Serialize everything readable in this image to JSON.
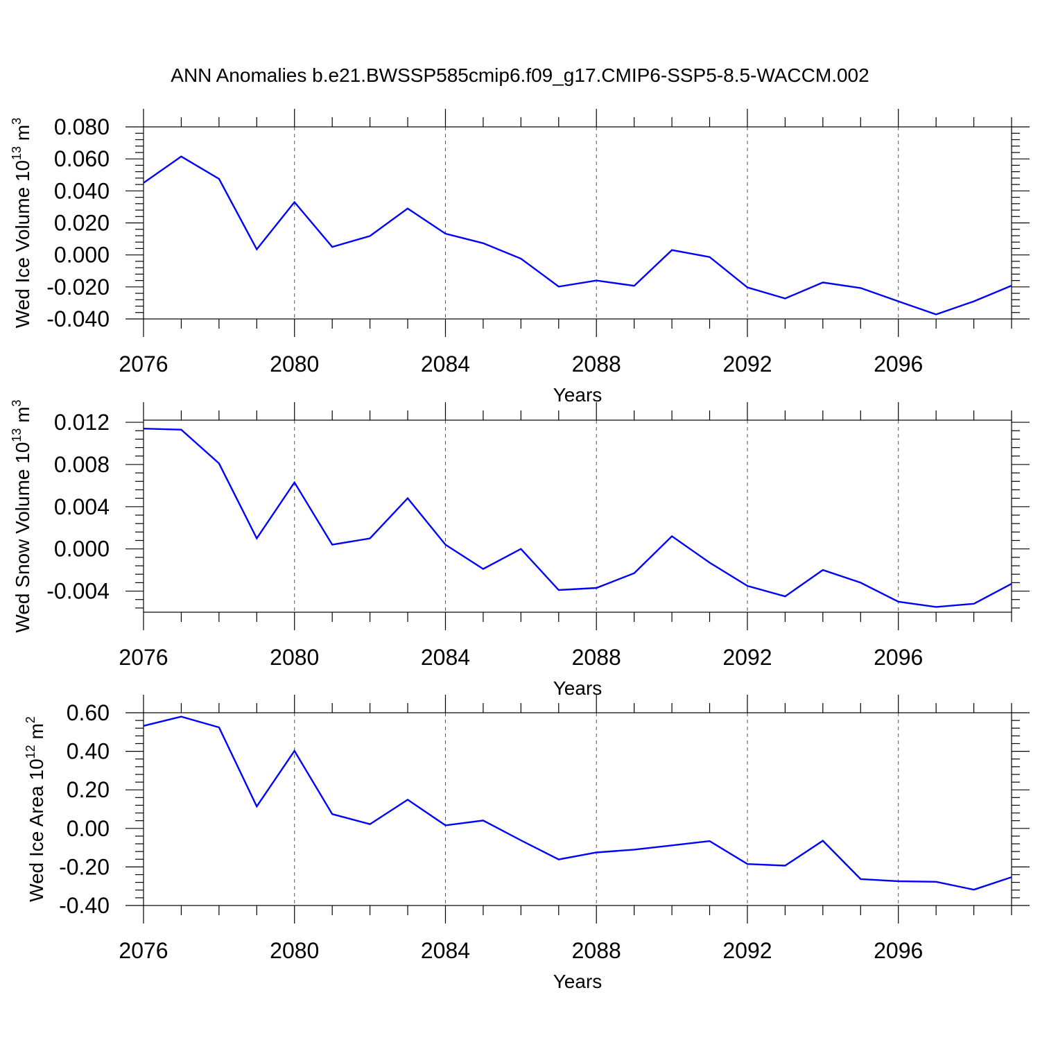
{
  "title": "ANN Anomalies b.e21.BWSSP585cmip6.f09_g17.CMIP6-SSP5-8.5-WACCM.002",
  "line_color": "#0000ff",
  "chart_data": [
    {
      "type": "line",
      "ylabel_main": "Wed Ice Volume 10",
      "ylabel_exp": "13",
      "ylabel_unit": "m",
      "ylabel_unit_exp": "3",
      "xlabel": "Years",
      "xlim": [
        2076,
        2099
      ],
      "ylim": [
        -0.04,
        0.08
      ],
      "yticks": [
        -0.04,
        -0.02,
        0.0,
        0.02,
        0.04,
        0.06,
        0.08
      ],
      "ytick_labels": [
        "-0.040",
        "-0.020",
        "0.000",
        "0.020",
        "0.040",
        "0.060",
        "0.080"
      ],
      "xticks": [
        2076,
        2080,
        2084,
        2088,
        2092,
        2096
      ],
      "xtick_labels": [
        "2076",
        "2080",
        "2084",
        "2088",
        "2092",
        "2096"
      ],
      "series": [
        {
          "x": [
            2076,
            2077,
            2078,
            2079,
            2080,
            2081,
            2082,
            2083,
            2084,
            2085,
            2086,
            2087,
            2088,
            2089,
            2090,
            2091,
            2092,
            2093,
            2094,
            2095,
            2096,
            2097,
            2098,
            2099
          ],
          "values": [
            0.045,
            0.0615,
            0.0475,
            0.0035,
            0.033,
            0.005,
            0.0118,
            0.029,
            0.0133,
            0.0073,
            -0.0023,
            -0.0198,
            -0.016,
            -0.0193,
            0.003,
            -0.0013,
            -0.0203,
            -0.0272,
            -0.0172,
            -0.0207,
            -0.029,
            -0.0372,
            -0.029,
            -0.0192
          ]
        }
      ]
    },
    {
      "type": "line",
      "ylabel_main": "Wed Snow Volume 10",
      "ylabel_exp": "13",
      "ylabel_unit": "m",
      "ylabel_unit_exp": "3",
      "xlabel": "Years",
      "xlim": [
        2076,
        2099
      ],
      "ylim": [
        -0.006,
        0.0122
      ],
      "yticks": [
        -0.004,
        0.0,
        0.004,
        0.008,
        0.012
      ],
      "ytick_labels": [
        "-0.004",
        "0.000",
        "0.004",
        "0.008",
        "0.012"
      ],
      "xticks": [
        2076,
        2080,
        2084,
        2088,
        2092,
        2096
      ],
      "xtick_labels": [
        "2076",
        "2080",
        "2084",
        "2088",
        "2092",
        "2096"
      ],
      "series": [
        {
          "x": [
            2076,
            2077,
            2078,
            2079,
            2080,
            2081,
            2082,
            2083,
            2084,
            2085,
            2086,
            2087,
            2088,
            2089,
            2090,
            2091,
            2092,
            2093,
            2094,
            2095,
            2096,
            2097,
            2098,
            2099
          ],
          "values": [
            0.0114,
            0.0113,
            0.0081,
            0.001,
            0.0063,
            0.0004,
            0.001,
            0.0048,
            0.0004,
            -0.0019,
            0.0,
            -0.0039,
            -0.0037,
            -0.0023,
            0.0012,
            -0.0013,
            -0.0035,
            -0.0045,
            -0.002,
            -0.0032,
            -0.005,
            -0.0055,
            -0.0052,
            -0.0033
          ]
        }
      ]
    },
    {
      "type": "line",
      "ylabel_main": "Wed Ice Area 10",
      "ylabel_exp": "12",
      "ylabel_unit": "m",
      "ylabel_unit_exp": "2",
      "xlabel": "Years",
      "xlim": [
        2076,
        2099
      ],
      "ylim": [
        -0.4,
        0.6
      ],
      "yticks": [
        -0.4,
        -0.2,
        0.0,
        0.2,
        0.4,
        0.6
      ],
      "ytick_labels": [
        "-0.40",
        "-0.20",
        "0.00",
        "0.20",
        "0.40",
        "0.60"
      ],
      "xticks": [
        2076,
        2080,
        2084,
        2088,
        2092,
        2096
      ],
      "xtick_labels": [
        "2076",
        "2080",
        "2084",
        "2088",
        "2092",
        "2096"
      ],
      "series": [
        {
          "x": [
            2076,
            2077,
            2078,
            2079,
            2080,
            2081,
            2082,
            2083,
            2084,
            2085,
            2086,
            2087,
            2088,
            2089,
            2090,
            2091,
            2092,
            2093,
            2094,
            2095,
            2096,
            2097,
            2098,
            2099
          ],
          "values": [
            0.532,
            0.58,
            0.524,
            0.114,
            0.402,
            0.074,
            0.022,
            0.149,
            0.016,
            0.041,
            -0.062,
            -0.161,
            -0.125,
            -0.11,
            -0.088,
            -0.066,
            -0.185,
            -0.193,
            -0.064,
            -0.263,
            -0.274,
            -0.277,
            -0.318,
            -0.253
          ]
        }
      ]
    }
  ]
}
